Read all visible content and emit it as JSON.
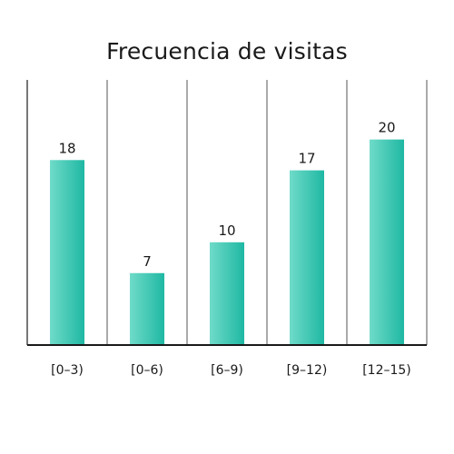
{
  "chart_data": {
    "type": "bar",
    "title": "Frecuencia de visitas",
    "categories": [
      "[0–3)",
      "[0–6)",
      "[6–9)",
      "[9–12)",
      "[12–15)"
    ],
    "values": [
      18,
      7,
      10,
      17,
      20
    ],
    "xlabel": "",
    "ylabel": "",
    "ylim": [
      0,
      25.8
    ],
    "grid": "vertical category separators",
    "legend": "none",
    "colors": {
      "bar_light": "#6fdbc9",
      "bar_dark": "#1fb8a3",
      "axis": "#1a1a1a",
      "separator": "#555555"
    }
  }
}
